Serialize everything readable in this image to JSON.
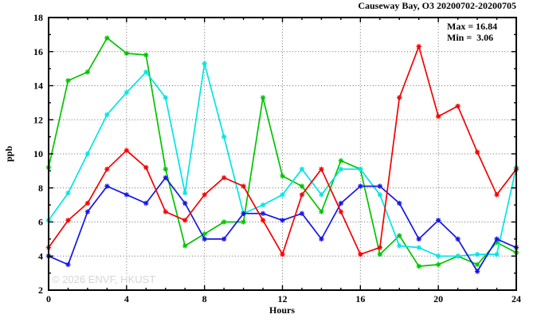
{
  "header": {
    "title": "Causeway Bay, O3 20200702-20200705"
  },
  "annotations": {
    "max_label": "Max = 16.84",
    "min_label": "Min =  3.06",
    "max_value": 16.84,
    "min_value": 3.06
  },
  "watermark": "© 2026 ENVF, HKUST",
  "chart_data": {
    "type": "line",
    "title": "Causeway Bay, O3 20200702-20200705",
    "xlabel": "Hours",
    "ylabel": "ppb",
    "xlim": [
      0,
      24
    ],
    "ylim": [
      2,
      18
    ],
    "x_major_ticks": [
      0,
      4,
      8,
      12,
      16,
      20,
      24
    ],
    "x_minor_step": 1,
    "y_major_ticks": [
      2,
      4,
      6,
      8,
      10,
      12,
      14,
      16,
      18
    ],
    "y_minor_step": 1,
    "grid": true,
    "legend_position": "none",
    "x": [
      0,
      1,
      2,
      3,
      4,
      5,
      6,
      7,
      8,
      9,
      10,
      11,
      12,
      13,
      14,
      15,
      16,
      17,
      18,
      19,
      20,
      21,
      22,
      23,
      24
    ],
    "series": [
      {
        "name": "day-1-green",
        "color": "#00c400",
        "values": [
          9.2,
          14.3,
          14.8,
          16.8,
          15.9,
          15.8,
          9.1,
          4.6,
          5.3,
          6.0,
          6.0,
          13.3,
          8.7,
          8.1,
          6.6,
          9.6,
          9.1,
          4.1,
          5.2,
          3.4,
          3.5,
          4.0,
          3.5,
          4.8,
          4.2
        ]
      },
      {
        "name": "day-2-cyan",
        "color": "#00e5e5",
        "values": [
          6.1,
          7.7,
          10.0,
          12.3,
          13.6,
          14.8,
          13.3,
          7.7,
          15.3,
          11.0,
          6.5,
          7.0,
          7.6,
          9.1,
          7.6,
          9.1,
          9.1,
          7.6,
          4.6,
          4.5,
          4.0,
          4.0,
          4.1,
          4.1,
          9.2
        ]
      },
      {
        "name": "day-3-blue",
        "color": "#1515e8",
        "values": [
          4.0,
          3.5,
          6.6,
          8.1,
          7.6,
          7.1,
          8.6,
          7.1,
          5.0,
          5.0,
          6.5,
          6.5,
          6.1,
          6.5,
          5.0,
          7.1,
          8.1,
          8.1,
          7.1,
          5.0,
          6.1,
          5.0,
          3.1,
          5.0,
          4.5
        ]
      },
      {
        "name": "day-4-red",
        "color": "#f40000",
        "values": [
          4.5,
          6.1,
          7.1,
          9.1,
          10.2,
          9.2,
          6.6,
          6.1,
          7.6,
          8.6,
          8.1,
          6.1,
          4.1,
          7.6,
          9.1,
          6.6,
          4.1,
          4.5,
          13.3,
          16.3,
          12.2,
          12.8,
          10.1,
          7.6,
          9.1
        ]
      }
    ]
  }
}
